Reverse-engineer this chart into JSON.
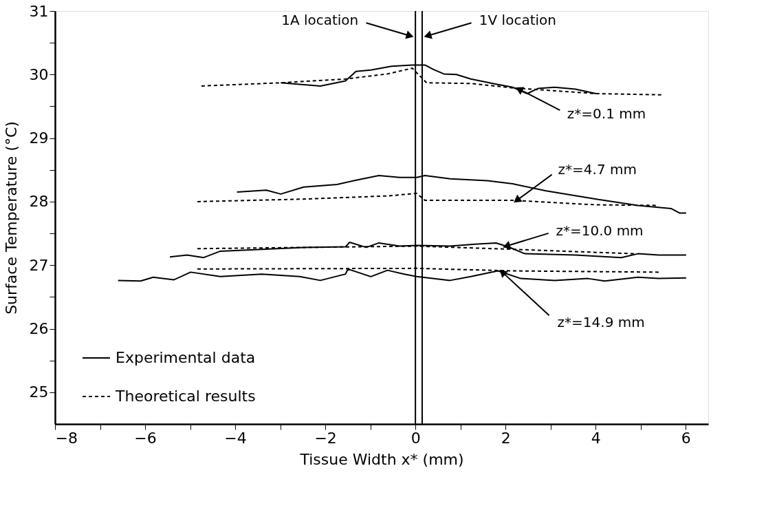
{
  "chart_data": {
    "type": "line",
    "xlabel": "Tissue Width x*   (mm)",
    "ylabel": "Surface Temperature  (°C)",
    "xlim": [
      -8,
      6.5
    ],
    "ylim": [
      24.5,
      31
    ],
    "xticks": [
      -8,
      {
        "value": -7,
        "label": null
      },
      -6,
      {
        "value": -5,
        "label": null
      },
      -4,
      {
        "value": -3,
        "label": null
      },
      -2,
      {
        "value": -1,
        "label": null
      },
      0,
      {
        "value": 1,
        "label": null
      },
      2,
      {
        "value": 3,
        "label": null
      },
      4,
      {
        "value": 5,
        "label": null
      },
      6
    ],
    "yticks": [
      25,
      {
        "value": 25.5,
        "label": null
      },
      26,
      {
        "value": 26.5,
        "label": null
      },
      27,
      {
        "value": 27.5,
        "label": null
      },
      28,
      {
        "value": 28.5,
        "label": null
      },
      29,
      {
        "value": 29.5,
        "label": null
      },
      30,
      {
        "value": 30.5,
        "label": null
      },
      31
    ],
    "grid": false,
    "legend": "bottom left",
    "marker": "none",
    "series": [
      {
        "name": "Experimental data",
        "color": "#000000",
        "line_style": "solid",
        "x": [
          -2.99,
          -2.11,
          -1.55,
          -1.32,
          -0.99,
          -0.53,
          -0.07,
          0.21,
          0.4,
          0.63,
          0.91,
          1.23,
          1.79,
          2.16,
          2.48,
          2.72,
          3.09,
          3.55,
          4.01
        ],
        "values": [
          29.87,
          29.82,
          29.9,
          30.05,
          30.07,
          30.13,
          30.15,
          30.15,
          30.08,
          30.01,
          30.0,
          29.93,
          29.85,
          29.8,
          29.7,
          29.78,
          29.8,
          29.77,
          29.7
        ]
      },
      {
        "name": "Theoretical results",
        "color": "#000000",
        "line_style": "dashed",
        "x": [
          -4.75,
          -3.0,
          -1.55,
          -0.62,
          -0.07,
          0.25,
          1.23,
          2.16,
          4.01,
          5.5
        ],
        "values": [
          29.82,
          29.87,
          29.93,
          30.01,
          30.1,
          29.87,
          29.86,
          29.79,
          29.7,
          29.68
        ]
      },
      {
        "color": "#000000",
        "line_style": "solid",
        "x": [
          -3.96,
          -3.31,
          -2.99,
          -2.48,
          -1.74,
          -1.37,
          -0.81,
          -0.35,
          0.03,
          0.21,
          0.77,
          1.6,
          2.16,
          2.9,
          4.01,
          4.94,
          5.68,
          5.87,
          6.01
        ],
        "values": [
          28.15,
          28.18,
          28.12,
          28.23,
          28.27,
          28.33,
          28.41,
          28.38,
          28.38,
          28.41,
          28.36,
          28.33,
          28.28,
          28.17,
          28.04,
          27.94,
          27.89,
          27.82,
          27.82
        ]
      },
      {
        "color": "#000000",
        "line_style": "dashed",
        "x": [
          -4.84,
          -2.48,
          -0.62,
          0.03,
          0.21,
          2.16,
          4.01,
          5.4
        ],
        "values": [
          28.0,
          28.04,
          28.09,
          28.13,
          28.02,
          28.02,
          27.95,
          27.94
        ]
      },
      {
        "color": "#000000",
        "line_style": "solid",
        "x": [
          -5.45,
          -5.07,
          -4.7,
          -4.33,
          -3.41,
          -2.48,
          -1.55,
          -1.46,
          -1.09,
          -0.81,
          -0.35,
          0.03,
          0.77,
          1.32,
          1.79,
          2.06,
          2.43,
          3.55,
          4.57,
          4.94,
          5.4,
          6.01
        ],
        "values": [
          27.13,
          27.16,
          27.12,
          27.22,
          27.25,
          27.28,
          27.29,
          27.36,
          27.28,
          27.35,
          27.3,
          27.31,
          27.3,
          27.33,
          27.35,
          27.29,
          27.18,
          27.16,
          27.12,
          27.18,
          27.16,
          27.16
        ]
      },
      {
        "color": "#000000",
        "line_style": "dashed",
        "x": [
          -4.84,
          0.03,
          2.16,
          4.85
        ],
        "values": [
          27.26,
          27.3,
          27.25,
          27.18
        ]
      },
      {
        "color": "#000000",
        "line_style": "solid",
        "x": [
          -6.6,
          -6.1,
          -5.82,
          -5.36,
          -4.99,
          -4.33,
          -3.41,
          -2.57,
          -2.11,
          -1.55,
          -1.5,
          -0.99,
          -0.62,
          -0.25,
          0.03,
          0.77,
          1.23,
          1.83,
          2.34,
          3.09,
          3.83,
          4.2,
          4.94,
          5.4,
          6.01
        ],
        "values": [
          26.76,
          26.75,
          26.81,
          26.77,
          26.89,
          26.82,
          26.86,
          26.82,
          26.76,
          26.86,
          26.94,
          26.82,
          26.92,
          26.86,
          26.82,
          26.76,
          26.82,
          26.91,
          26.79,
          26.76,
          26.79,
          26.75,
          26.81,
          26.79,
          26.8
        ]
      },
      {
        "color": "#000000",
        "line_style": "dashed",
        "x": [
          -4.84,
          0.03,
          2.16,
          5.4
        ],
        "values": [
          26.94,
          26.95,
          26.91,
          26.89
        ]
      }
    ],
    "ref_lines": [
      {
        "axis": "x",
        "value": 0,
        "label": "1A location",
        "color": "#000000"
      },
      {
        "axis": "x",
        "value": 0.15,
        "label": "1V location",
        "color": "#000000"
      }
    ],
    "annotations": [
      {
        "text": "z*=0.1 mm",
        "x": 2.3,
        "y": 29.77
      },
      {
        "text": "z*=4.7 mm",
        "x": 2.25,
        "y": 28.02
      },
      {
        "text": "z*=10.0 mm",
        "x": 2.02,
        "y": 27.3
      },
      {
        "text": "z*=14.9 mm",
        "x": 1.93,
        "y": 26.89
      }
    ]
  }
}
